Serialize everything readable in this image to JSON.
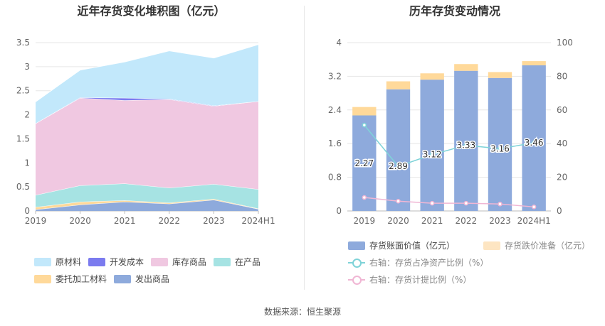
{
  "chart_data": [
    {
      "type": "area",
      "title": "近年存货变化堆积图（亿元）",
      "x": [
        "2019",
        "2020",
        "2021",
        "2022",
        "2023",
        "2024H1"
      ],
      "ylim": [
        0,
        3.5
      ],
      "yticks": [
        "0",
        "0.5",
        "1",
        "1.5",
        "2",
        "2.5",
        "3",
        "3.5"
      ],
      "stacked": true,
      "grid": true,
      "legend_position": "bottom",
      "series": [
        {
          "name": "发出商品",
          "color": "#8eaadc",
          "values": [
            0.03,
            0.13,
            0.19,
            0.15,
            0.23,
            0.04
          ]
        },
        {
          "name": "委托加工材料",
          "color": "#ffd99a",
          "values": [
            0.05,
            0.06,
            0.03,
            0.02,
            0.02,
            0.01
          ]
        },
        {
          "name": "在产品",
          "color": "#a6e3e3",
          "values": [
            0.25,
            0.34,
            0.35,
            0.31,
            0.31,
            0.4
          ]
        },
        {
          "name": "库存商品",
          "color": "#f0c8e1",
          "values": [
            1.49,
            1.82,
            1.73,
            1.84,
            1.62,
            1.83
          ]
        },
        {
          "name": "开发成本",
          "color": "#7b7bef",
          "values": [
            0.0,
            0.01,
            0.05,
            0.01,
            0.01,
            0.0
          ]
        },
        {
          "name": "原材料",
          "color": "#c2e8fb",
          "values": [
            0.45,
            0.57,
            0.75,
            1.0,
            0.99,
            1.18
          ]
        }
      ],
      "legend_order": [
        "原材料",
        "开发成本",
        "库存商品",
        "在产品",
        "委托加工材料",
        "发出商品"
      ]
    },
    {
      "type": "bar",
      "title": "历年存货变动情况",
      "categories": [
        "2019",
        "2020",
        "2021",
        "2022",
        "2023",
        "2024H1"
      ],
      "ylim": [
        0,
        4
      ],
      "yticks": [
        "0",
        "0.8",
        "1.6",
        "2.4",
        "3.2",
        "4"
      ],
      "y2lim": [
        0,
        100
      ],
      "y2ticks": [
        "0",
        "20",
        "40",
        "60",
        "80",
        "100"
      ],
      "stacked": true,
      "grid": true,
      "legend_position": "bottom",
      "series": [
        {
          "name": "存货账面价值（亿元）",
          "type": "bar",
          "color": "#8eaadc",
          "values": [
            2.27,
            2.89,
            3.12,
            3.33,
            3.16,
            3.46
          ],
          "labels": [
            "2.27",
            "2.89",
            "3.12",
            "3.33",
            "3.16",
            "3.46"
          ]
        },
        {
          "name": "存货跌价准备（亿元）",
          "type": "bar",
          "color": "#ffd99a",
          "values": [
            0.2,
            0.19,
            0.15,
            0.16,
            0.14,
            0.1
          ]
        },
        {
          "name": "右轴：存货占净资产比例（%）",
          "type": "line",
          "axis": "right",
          "color": "#7fd3d8",
          "values": [
            51,
            26.5,
            33.5,
            39,
            37,
            40.5
          ]
        },
        {
          "name": "右轴：存货计提比例（%）",
          "type": "line",
          "axis": "right",
          "color": "#f0b6d4",
          "values": [
            8,
            5.8,
            4.6,
            4.6,
            4.1,
            2.4
          ]
        }
      ]
    }
  ],
  "source": "数据来源：恒生聚源"
}
